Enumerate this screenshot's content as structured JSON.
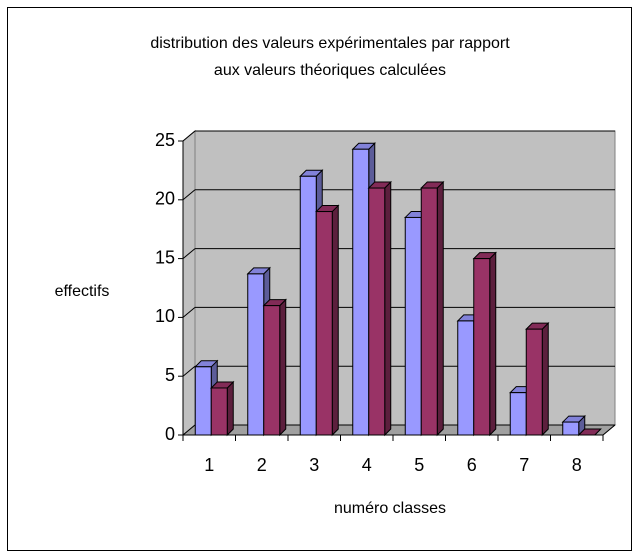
{
  "chart_data": {
    "type": "bar3d",
    "title": "distribution des valeurs expérimentales par rapport",
    "subtitle": "aux valeurs théoriques calculées",
    "y_label": "effectifs",
    "x_label": "numéro classes",
    "categories": [
      "1",
      "2",
      "3",
      "4",
      "5",
      "6",
      "7",
      "8"
    ],
    "series": [
      {
        "color": "#9999ff",
        "values": [
          5.8,
          13.7,
          22,
          24.3,
          18.5,
          9.7,
          3.6,
          1.1
        ]
      },
      {
        "color": "#993366",
        "values": [
          4,
          11,
          19,
          21,
          21,
          15,
          9,
          0
        ]
      }
    ],
    "ylim": [
      0,
      25
    ],
    "yticks": [
      0,
      5,
      10,
      15,
      20,
      25
    ],
    "grid": true
  }
}
